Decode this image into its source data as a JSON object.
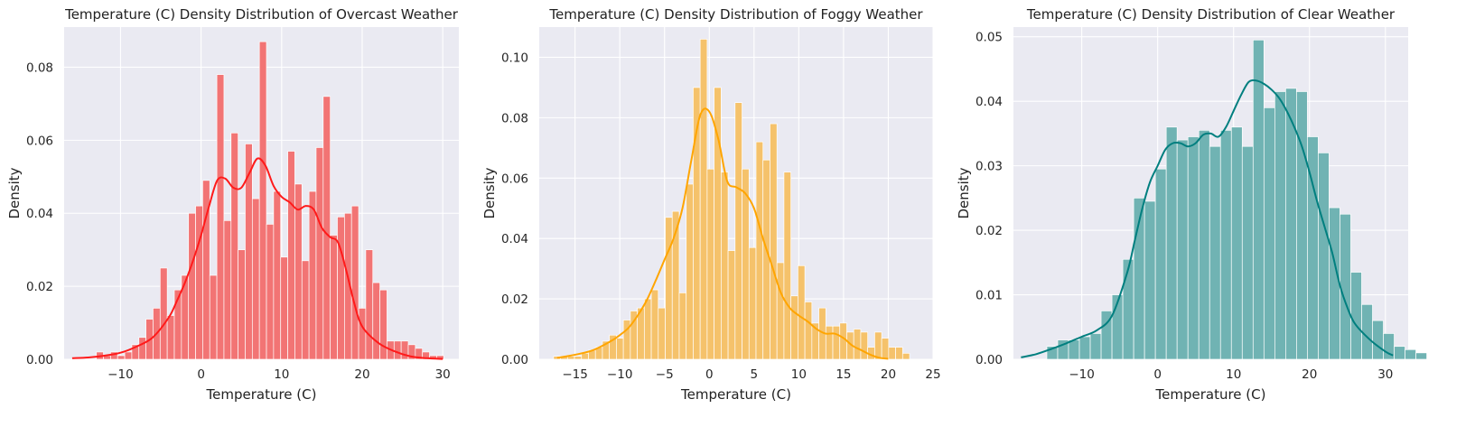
{
  "figure": {
    "background": "#ffffff",
    "plot_background": "#eaeaf2"
  },
  "chart_data": [
    {
      "type": "bar",
      "title": "Temperature (C) Density Distribution of Overcast Weather",
      "xlabel": "Temperature (C)",
      "ylabel": "Density",
      "xlim": [
        -17,
        32
      ],
      "ylim": [
        0,
        0.091
      ],
      "xticks": [
        -10,
        0,
        10,
        20,
        30
      ],
      "xtick_labels": [
        "−10",
        "0",
        "10",
        "20",
        "30"
      ],
      "yticks": [
        0,
        0.02,
        0.04,
        0.06,
        0.08
      ],
      "ytick_labels": [
        "0.00",
        "0.02",
        "0.04",
        "0.06",
        "0.08"
      ],
      "grid": true,
      "bar_color": "#f27474",
      "line_color": "#ff1a1a",
      "bins": {
        "start": -13.0,
        "width": 0.88,
        "values": [
          0.002,
          0.001,
          0.002,
          0.001,
          0.002,
          0.004,
          0.006,
          0.011,
          0.014,
          0.025,
          0.012,
          0.019,
          0.023,
          0.04,
          0.042,
          0.049,
          0.023,
          0.078,
          0.038,
          0.062,
          0.03,
          0.059,
          0.044,
          0.087,
          0.037,
          0.046,
          0.028,
          0.057,
          0.048,
          0.027,
          0.046,
          0.058,
          0.072,
          0.034,
          0.039,
          0.04,
          0.042,
          0.014,
          0.03,
          0.021,
          0.019,
          0.005,
          0.005,
          0.005,
          0.004,
          0.003,
          0.002,
          0.001,
          0.001
        ]
      },
      "kde": {
        "x": [
          -16,
          -14,
          -12,
          -10,
          -8,
          -6,
          -4,
          -3,
          -2,
          -1,
          0,
          1,
          2,
          3,
          4,
          5,
          6,
          7,
          8,
          9,
          10,
          11,
          12,
          13,
          14,
          15,
          16,
          17,
          18,
          19,
          20,
          22,
          24,
          26,
          28,
          30
        ],
        "y": [
          0.0003,
          0.0005,
          0.001,
          0.0018,
          0.0035,
          0.006,
          0.0115,
          0.016,
          0.021,
          0.027,
          0.034,
          0.042,
          0.049,
          0.0495,
          0.047,
          0.047,
          0.051,
          0.055,
          0.053,
          0.0475,
          0.0445,
          0.043,
          0.041,
          0.042,
          0.041,
          0.036,
          0.0335,
          0.032,
          0.0245,
          0.0155,
          0.009,
          0.0045,
          0.0022,
          0.0008,
          0.0003,
          0.0001
        ]
      }
    },
    {
      "type": "bar",
      "title": "Temperature (C) Density Distribution of Foggy Weather",
      "xlabel": "Temperature (C)",
      "ylabel": "Density",
      "xlim": [
        -19,
        25
      ],
      "ylim": [
        0,
        0.11
      ],
      "xticks": [
        -15,
        -10,
        -5,
        0,
        5,
        10,
        15,
        20,
        25
      ],
      "xtick_labels": [
        "−15",
        "−10",
        "−5",
        "0",
        "5",
        "10",
        "15",
        "20",
        "25"
      ],
      "grid": true,
      "yticks": [
        0,
        0.02,
        0.04,
        0.06,
        0.08,
        0.1
      ],
      "ytick_labels": [
        "0.00",
        "0.02",
        "0.04",
        "0.06",
        "0.08",
        "0.10"
      ],
      "bar_color": "#f5c26b",
      "line_color": "#ffa500",
      "bins": {
        "start": -17.4,
        "width": 0.78,
        "values": [
          0.001,
          0.001,
          0.001,
          0.001,
          0.002,
          0.003,
          0.004,
          0.006,
          0.008,
          0.007,
          0.013,
          0.016,
          0.017,
          0.02,
          0.023,
          0.017,
          0.047,
          0.049,
          0.022,
          0.058,
          0.09,
          0.106,
          0.063,
          0.09,
          0.062,
          0.036,
          0.085,
          0.063,
          0.037,
          0.072,
          0.066,
          0.078,
          0.032,
          0.062,
          0.021,
          0.031,
          0.019,
          0.012,
          0.017,
          0.011,
          0.011,
          0.012,
          0.009,
          0.01,
          0.009,
          0.004,
          0.009,
          0.007,
          0.004,
          0.004,
          0.002
        ]
      },
      "kde": {
        "x": [
          -17,
          -15,
          -13,
          -11,
          -10,
          -9,
          -8,
          -7,
          -6,
          -5,
          -4,
          -3,
          -2,
          -1,
          0,
          1,
          2,
          3,
          4,
          5,
          6,
          7,
          8,
          9,
          10,
          11,
          12,
          13,
          14,
          15,
          16,
          17,
          18,
          19,
          20
        ],
        "y": [
          0.0005,
          0.0015,
          0.003,
          0.006,
          0.008,
          0.0105,
          0.0145,
          0.0195,
          0.026,
          0.033,
          0.04,
          0.05,
          0.066,
          0.081,
          0.082,
          0.073,
          0.059,
          0.057,
          0.055,
          0.05,
          0.04,
          0.031,
          0.022,
          0.017,
          0.0145,
          0.0125,
          0.01,
          0.0085,
          0.0085,
          0.007,
          0.0045,
          0.003,
          0.0015,
          0.0005,
          0.0002
        ]
      }
    },
    {
      "type": "bar",
      "title": "Temperature (C) Density Distribution of Clear Weather",
      "xlabel": "Temperature (C)",
      "ylabel": "Density",
      "xlim": [
        -19,
        33
      ],
      "ylim": [
        0,
        0.0515
      ],
      "xticks": [
        -10,
        0,
        10,
        20,
        30
      ],
      "xtick_labels": [
        "−10",
        "0",
        "10",
        "20",
        "30"
      ],
      "yticks": [
        0,
        0.01,
        0.02,
        0.03,
        0.04,
        0.05
      ],
      "ytick_labels": [
        "0.00",
        "0.01",
        "0.02",
        "0.03",
        "0.04",
        "0.05"
      ],
      "grid": true,
      "bar_color": "#70b3b3",
      "line_color": "#007f7f",
      "bins": {
        "start": -14.6,
        "width": 1.43,
        "values": [
          0.002,
          0.003,
          0.003,
          0.0035,
          0.004,
          0.0075,
          0.01,
          0.0155,
          0.025,
          0.0245,
          0.0295,
          0.036,
          0.034,
          0.0345,
          0.0355,
          0.033,
          0.0355,
          0.036,
          0.033,
          0.0495,
          0.039,
          0.0415,
          0.042,
          0.0415,
          0.0345,
          0.032,
          0.0235,
          0.0225,
          0.0135,
          0.0085,
          0.006,
          0.004,
          0.002,
          0.0015,
          0.001
        ]
      },
      "kde": {
        "x": [
          -18,
          -16,
          -14,
          -12,
          -10,
          -8,
          -6,
          -4,
          -3,
          -2,
          -1,
          0,
          1,
          2,
          3,
          4,
          5,
          6,
          7,
          8,
          9,
          10,
          11,
          12,
          13,
          14,
          15,
          16,
          17,
          18,
          19,
          20,
          21,
          22,
          23,
          24,
          25,
          26,
          28,
          30,
          31
        ],
        "y": [
          0.0003,
          0.0008,
          0.0016,
          0.0025,
          0.0035,
          0.0045,
          0.0068,
          0.0135,
          0.0185,
          0.0235,
          0.0275,
          0.03,
          0.0325,
          0.0335,
          0.0335,
          0.033,
          0.0335,
          0.0348,
          0.035,
          0.0345,
          0.036,
          0.0385,
          0.041,
          0.043,
          0.0432,
          0.0427,
          0.0418,
          0.0405,
          0.0385,
          0.036,
          0.033,
          0.029,
          0.0245,
          0.0205,
          0.0165,
          0.0115,
          0.008,
          0.0055,
          0.003,
          0.0012,
          0.0006
        ]
      }
    }
  ]
}
